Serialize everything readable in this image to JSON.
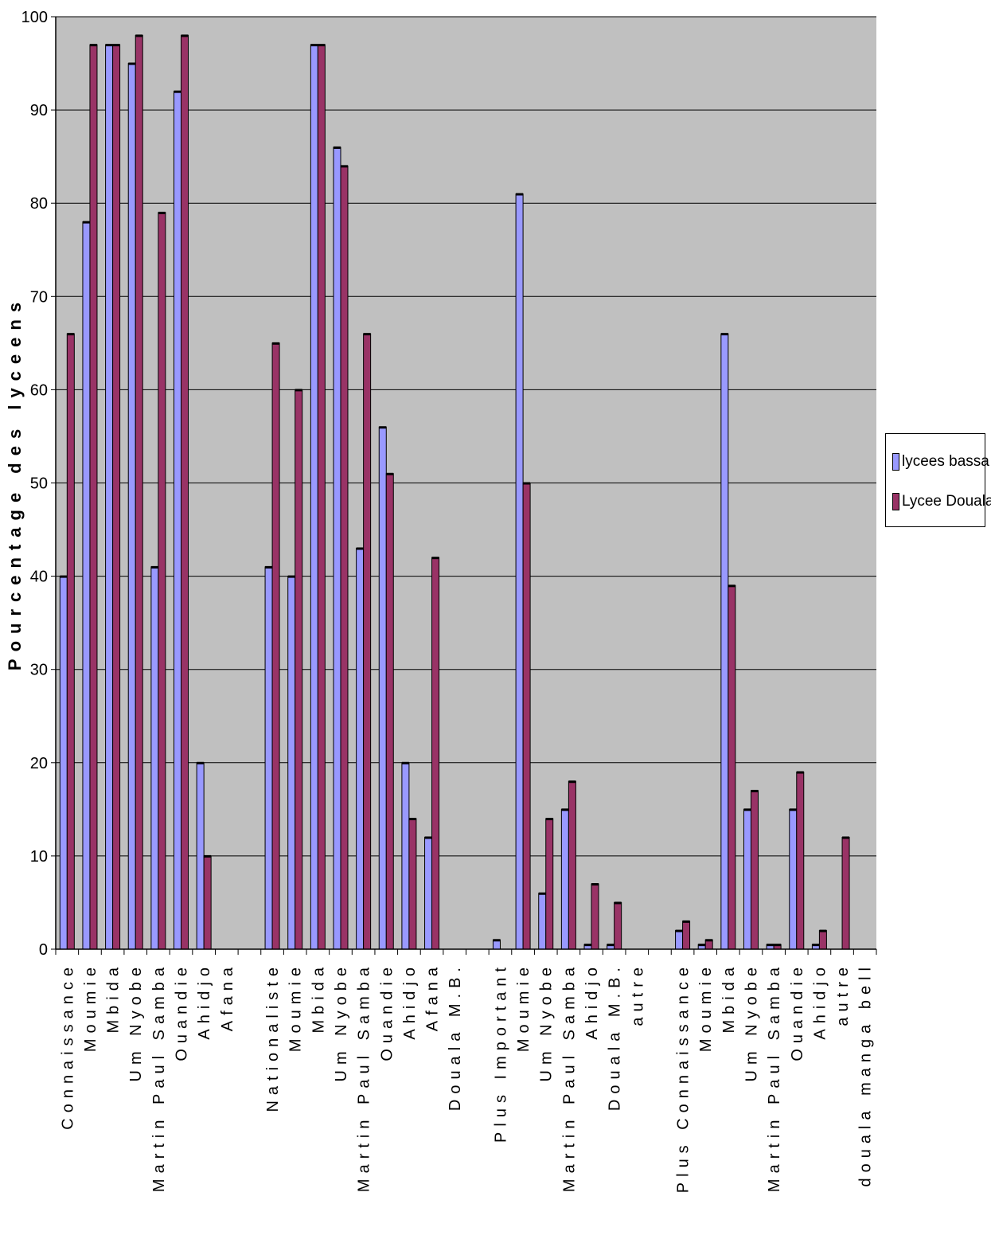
{
  "chart_data": {
    "type": "bar",
    "ylabel": "Pourcentage des lyceens",
    "ylim": [
      0,
      100
    ],
    "yticks": [
      0,
      10,
      20,
      30,
      40,
      50,
      60,
      70,
      80,
      90,
      100
    ],
    "grid": true,
    "legend_position": "right",
    "categories": [
      "Connaissance",
      "Moumie",
      "Mbida",
      "Um Nyobe",
      "Martin Paul Samba",
      "Ouandie",
      "Ahidjo",
      "Afana",
      "",
      "Nationaliste",
      "Moumie",
      "Mbida",
      "Um Nyobe",
      "Martin Paul Samba",
      "Ouandie",
      "Ahidjo",
      "Afana",
      "Douala M.B.",
      "",
      "Plus Important",
      "Moumie",
      "Um Nyobe",
      "Martin Paul Samba",
      "Ahidjo",
      "Douala M.B.",
      "autre",
      "",
      "Plus Connaissance",
      "Moumie",
      "Mbida",
      "Um Nyobe",
      "Martin Paul Samba",
      "Ouandie",
      "Ahidjo",
      "autre",
      "douala manga bell"
    ],
    "series": [
      {
        "name": "lycees bassa",
        "color": "#9999ff",
        "values": [
          40,
          78,
          97,
          95,
          41,
          92,
          20,
          null,
          null,
          41,
          40,
          97,
          86,
          43,
          56,
          20,
          12,
          null,
          null,
          1,
          81,
          6,
          15,
          0.5,
          0.5,
          null,
          null,
          2,
          0.5,
          66,
          15,
          0.5,
          15,
          0.5,
          null,
          null
        ]
      },
      {
        "name": "Lycee Douala",
        "color": "#993366",
        "values": [
          66,
          97,
          97,
          98,
          79,
          98,
          10,
          null,
          null,
          65,
          60,
          97,
          84,
          66,
          51,
          14,
          42,
          null,
          null,
          null,
          50,
          14,
          18,
          7,
          5,
          null,
          null,
          3,
          1,
          39,
          17,
          0.5,
          19,
          2,
          12,
          null
        ]
      }
    ]
  },
  "legend": {
    "items": [
      {
        "label": "lycees bassa",
        "color": "#9999ff"
      },
      {
        "label": "Lycee Douala",
        "color": "#993366"
      }
    ]
  },
  "colors": {
    "plot_background": "#c0c0c0",
    "grid": "#000000"
  }
}
